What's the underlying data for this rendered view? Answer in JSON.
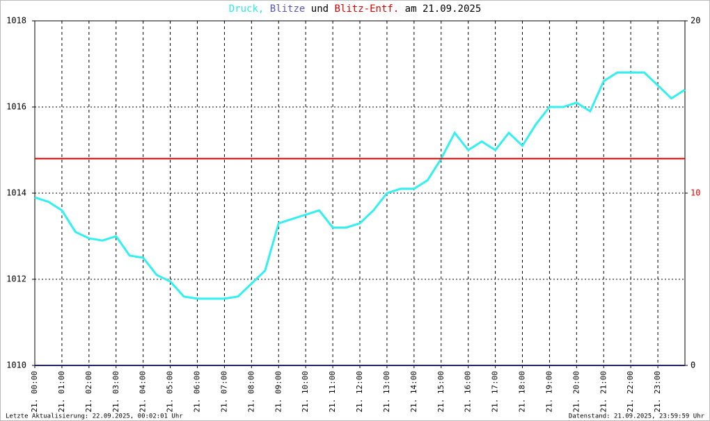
{
  "chart_data": {
    "type": "line",
    "title_parts": [
      {
        "text": "Druck,",
        "color": "#33e6e6"
      },
      {
        "text": "Blitze",
        "color": "#5555bb"
      },
      {
        "text": "und",
        "color": "#000000"
      },
      {
        "text": "Blitz-Entf.",
        "color": "#dd0000"
      },
      {
        "text": "am 21.09.2025",
        "color": "#000000"
      }
    ],
    "xlim": [
      0,
      24
    ],
    "xticks": [
      {
        "value": 0,
        "label": "21. 00:00"
      },
      {
        "value": 1,
        "label": "21. 01:00"
      },
      {
        "value": 2,
        "label": "21. 02:00"
      },
      {
        "value": 3,
        "label": "21. 03:00"
      },
      {
        "value": 4,
        "label": "21. 04:00"
      },
      {
        "value": 5,
        "label": "21. 05:00"
      },
      {
        "value": 6,
        "label": "21. 06:00"
      },
      {
        "value": 7,
        "label": "21. 07:00"
      },
      {
        "value": 8,
        "label": "21. 08:00"
      },
      {
        "value": 9,
        "label": "21. 09:00"
      },
      {
        "value": 10,
        "label": "21. 10:00"
      },
      {
        "value": 11,
        "label": "21. 11:00"
      },
      {
        "value": 12,
        "label": "21. 12:00"
      },
      {
        "value": 13,
        "label": "21. 13:00"
      },
      {
        "value": 14,
        "label": "21. 14:00"
      },
      {
        "value": 15,
        "label": "21. 15:00"
      },
      {
        "value": 16,
        "label": "21. 16:00"
      },
      {
        "value": 17,
        "label": "21. 17:00"
      },
      {
        "value": 18,
        "label": "21. 18:00"
      },
      {
        "value": 19,
        "label": "21. 19:00"
      },
      {
        "value": 20,
        "label": "21. 20:00"
      },
      {
        "value": 21,
        "label": "21. 21:00"
      },
      {
        "value": 22,
        "label": "21. 22:00"
      },
      {
        "value": 23,
        "label": "21. 23:00"
      }
    ],
    "ylim": [
      1010,
      1018
    ],
    "yticks": [
      1010,
      1012,
      1014,
      1016,
      1018
    ],
    "y2lim": [
      0,
      20
    ],
    "y2ticks": [
      0,
      10,
      20
    ],
    "y2tick_colors": [
      "#000000",
      "#dd0000",
      "#000000"
    ],
    "grid": true,
    "series": [
      {
        "name": "Druck",
        "color": "#33f0f0",
        "x": [
          0,
          0.5,
          1,
          1.5,
          2,
          2.5,
          3,
          3.5,
          4,
          4.5,
          5,
          5.5,
          6,
          6.5,
          7,
          7.5,
          8,
          8.5,
          9,
          9.5,
          10,
          10.5,
          11,
          11.5,
          12,
          12.5,
          13,
          13.5,
          14,
          14.5,
          15,
          15.5,
          16,
          16.5,
          17,
          17.5,
          18,
          18.5,
          19,
          19.5,
          20,
          20.5,
          21,
          21.5,
          22,
          22.5,
          23,
          23.5,
          24
        ],
        "values": [
          1013.9,
          1013.8,
          1013.6,
          1013.1,
          1012.95,
          1012.9,
          1013.0,
          1012.55,
          1012.5,
          1012.1,
          1011.95,
          1011.6,
          1011.55,
          1011.55,
          1011.55,
          1011.6,
          1011.9,
          1012.2,
          1013.3,
          1013.4,
          1013.5,
          1013.6,
          1013.2,
          1013.2,
          1013.3,
          1013.6,
          1014.0,
          1014.1,
          1014.1,
          1014.3,
          1014.8,
          1015.4,
          1015.0,
          1015.2,
          1015.0,
          1015.4,
          1015.1,
          1015.6,
          1016.0,
          1016.0,
          1016.1,
          1015.9,
          1016.6,
          1016.8,
          1016.8,
          1016.8,
          1016.5,
          1016.2,
          1016.4
        ]
      },
      {
        "name": "Blitze",
        "color": "#202080",
        "axis": "y2",
        "x": [
          0,
          24
        ],
        "values": [
          0,
          0
        ]
      },
      {
        "name": "Blitz-Entf.",
        "color": "#dd0000",
        "axis": "y2",
        "x": [
          0,
          24
        ],
        "values": [
          12,
          12
        ]
      }
    ],
    "footer_left": "Letzte Aktualisierung: 22.09.2025, 00:02:01 Uhr",
    "footer_right": "Datenstand: 21.09.2025, 23:59:59 Uhr"
  }
}
